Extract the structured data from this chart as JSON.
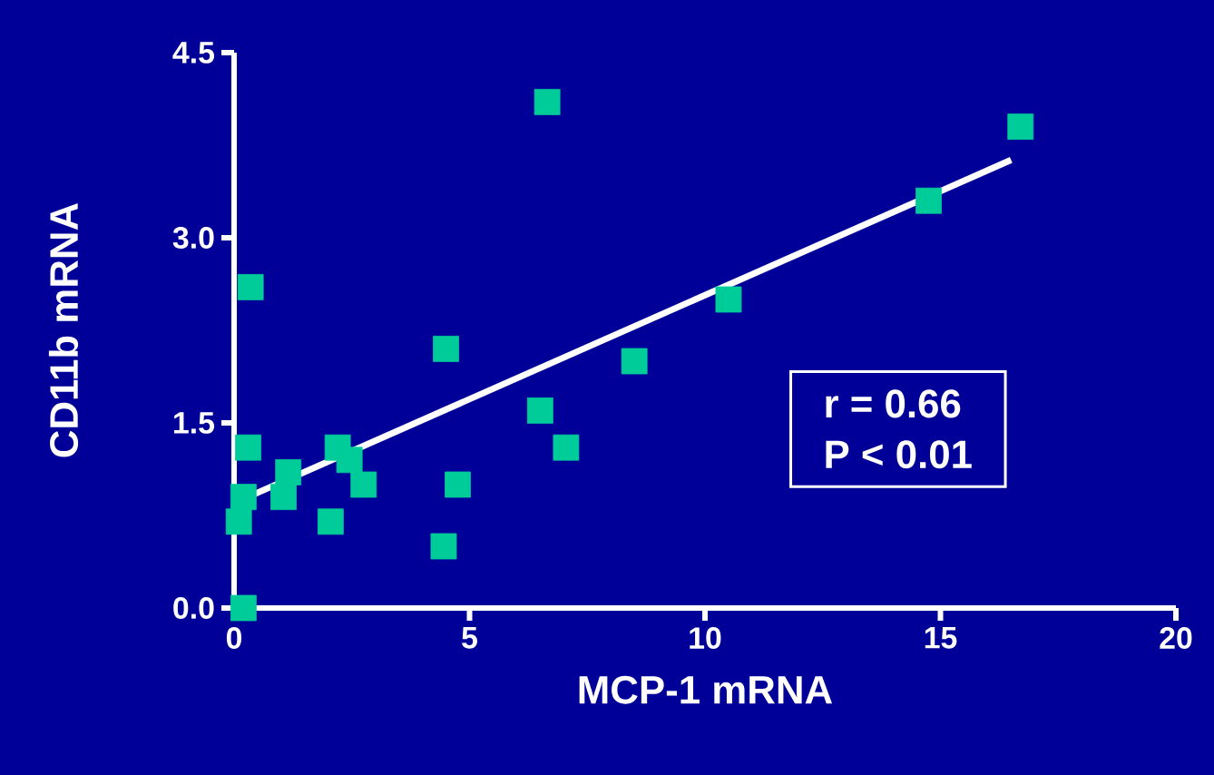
{
  "chart_data": {
    "type": "scatter",
    "xlabel": "MCP-1 mRNA",
    "ylabel": "CD11b mRNA",
    "xlim": [
      0,
      20
    ],
    "ylim": [
      0,
      4.5
    ],
    "xticks": [
      0,
      5,
      10,
      15,
      20
    ],
    "yticks": [
      {
        "value": 0,
        "label": "0.0"
      },
      {
        "value": 1.5,
        "label": "1.5"
      },
      {
        "value": 3,
        "label": "3.0"
      },
      {
        "value": 4.5,
        "label": "4.5"
      }
    ],
    "grid": false,
    "annotations": [
      "r = 0.66",
      "P < 0.01"
    ],
    "series": [
      {
        "marker": "square",
        "color": "#00cc99",
        "x": [
          0.1,
          0.2,
          0.35,
          0.3,
          0.2,
          1.15,
          1.05,
          2.2,
          2.45,
          2.75,
          2.05,
          4.5,
          4.45,
          4.75,
          6.5,
          6.65,
          7.05,
          8.5,
          10.5,
          14.75,
          16.7
        ],
        "values": [
          0.7,
          0.0,
          2.6,
          1.3,
          0.9,
          1.1,
          0.9,
          1.3,
          1.2,
          1.0,
          0.7,
          2.1,
          0.5,
          1.0,
          1.6,
          4.1,
          1.3,
          2.0,
          2.5,
          3.3,
          3.9
        ]
      },
      {
        "type": "line",
        "color": "#ffffff",
        "x": [
          0,
          16.5
        ],
        "values": [
          0.85,
          3.63
        ]
      }
    ]
  }
}
